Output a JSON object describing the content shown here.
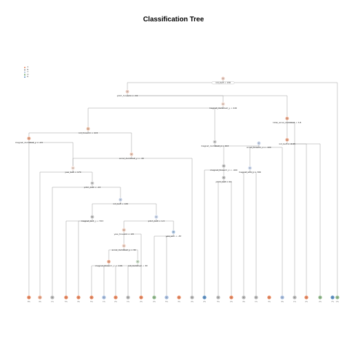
{
  "title": "Classification Tree",
  "legend": [
    {
      "label": "A",
      "color": "#e8845a"
    },
    {
      "label": "B",
      "color": "#b5b5b5"
    },
    {
      "label": "C",
      "color": "#9fb7db"
    },
    {
      "label": "D",
      "color": "#8fb98a"
    },
    {
      "label": "E",
      "color": "#5a8fc4"
    }
  ],
  "nodes": [
    {
      "id": 1,
      "parent": null,
      "color": "#e8c8bc",
      "class": "A",
      "split": "roll_belt < 130",
      "split_style": "box",
      "has_percent": true
    },
    {
      "id": 2,
      "parent": 1,
      "color": "#e8c8bc",
      "class": "A",
      "split": "pitch_forearm < -34"
    },
    {
      "id": 3,
      "parent": 2,
      "color": "#ecd2c6",
      "class": "A",
      "split": "magnet_dumbbell_y < 440"
    },
    {
      "id": 4,
      "parent": 3,
      "color": "#e6b79c",
      "class": "A",
      "split": "roll_forearm < 124"
    },
    {
      "id": 5,
      "parent": 4,
      "color": "#e8a283",
      "class": "A",
      "split": "magnet_dumbbell_y < -24"
    },
    {
      "id": 6,
      "parent": 4,
      "color": "#ebc6b4",
      "class": "A",
      "split": "accel_dumbbell_y < -40"
    },
    {
      "id": 7,
      "parent": 6,
      "color": "#edd6cb",
      "class": "A",
      "split": "yaw_belt < 170"
    },
    {
      "id": 8,
      "parent": 7,
      "color": "#c9c9c9",
      "class": "B",
      "split": "pitch_belt < -43"
    },
    {
      "id": 9,
      "parent": 8,
      "color": "#c3d0e6",
      "class": "C",
      "split": "roll_belt < 126"
    },
    {
      "id": 10,
      "parent": 9,
      "color": "#bdbdbd",
      "class": "B",
      "split": "magnet_belt_y < 553"
    },
    {
      "id": 11,
      "parent": 9,
      "color": "#c3d0e6",
      "class": "C",
      "split": "pitch_belt < 1.3"
    },
    {
      "id": 12,
      "parent": 11,
      "color": "#e6c1b0",
      "class": "A",
      "split": "yaw_forearm < -95"
    },
    {
      "id": 13,
      "parent": 12,
      "color": "#eccbbc",
      "class": "A",
      "split": "accel_dumbbell_y < 30"
    },
    {
      "id": 14,
      "parent": 13,
      "color": "#e8a283",
      "class": "A",
      "split": "magnet_forearm_z < -166"
    },
    {
      "id": 15,
      "parent": 13,
      "color": "#c6dac3",
      "class": "D",
      "split": "roll_dumbbell < 38"
    },
    {
      "id": 16,
      "parent": 11,
      "color": "#a9c4e2",
      "class": "E",
      "split": "yaw_arm < -87"
    },
    {
      "id": 17,
      "parent": 3,
      "color": "#c9c9c9",
      "class": "B",
      "split": "magnet_dumbbell_z < 293"
    },
    {
      "id": 18,
      "parent": 17,
      "color": "#bdbdbd",
      "class": "B",
      "split": "magnet_forearm_z < -490"
    },
    {
      "id": 19,
      "parent": 18,
      "color": "#bdbdbd",
      "class": "B",
      "split": "pitch_belt < 14"
    },
    {
      "id": 20,
      "parent": 17,
      "color": "#c3d0e6",
      "class": "C",
      "split": "accel_forearm_x < -100"
    },
    {
      "id": 21,
      "parent": 20,
      "color": "#c3d0e6",
      "class": "C",
      "split": "magnet_arm_y < 366"
    },
    {
      "id": 22,
      "parent": 2,
      "color": "#e8a283",
      "class": "A",
      "split": "total_accel_dumbbell < 3.8"
    },
    {
      "id": 23,
      "parent": 22,
      "color": "#e8a283",
      "class": "A",
      "split": "roll_belt < -0.05"
    }
  ],
  "leaves": [
    {
      "id": "L01",
      "color": "#e8845a",
      "class": "A",
      "percent": "8%"
    },
    {
      "id": "L02",
      "color": "#e8a283",
      "class": "A",
      "percent": "4%"
    },
    {
      "id": "L03",
      "color": "#b5b5b5",
      "class": "B",
      "percent": "1%"
    },
    {
      "id": "L04",
      "color": "#e8845a",
      "class": "A",
      "percent": "5%"
    },
    {
      "id": "L05",
      "color": "#e8845a",
      "class": "A",
      "percent": "4%"
    },
    {
      "id": "L06",
      "color": "#e8845a",
      "class": "A",
      "percent": "5%"
    },
    {
      "id": "L07",
      "color": "#9fb7db",
      "class": "C",
      "percent": "1%"
    },
    {
      "id": "L08",
      "color": "#e8845a",
      "class": "A",
      "percent": "2%"
    },
    {
      "id": "L09",
      "color": "#b5b5b5",
      "class": "B",
      "percent": "1%"
    },
    {
      "id": "L10",
      "color": "#e8845a",
      "class": "A",
      "percent": "2%"
    },
    {
      "id": "L11",
      "color": "#8fb98a",
      "class": "D",
      "percent": "2%"
    },
    {
      "id": "L12",
      "color": "#9fb7db",
      "class": "C",
      "percent": "5%"
    },
    {
      "id": "L13",
      "color": "#e8845a",
      "class": "A",
      "percent": "3%"
    },
    {
      "id": "L14",
      "color": "#b5b5b5",
      "class": "B",
      "percent": "2%"
    },
    {
      "id": "L15",
      "color": "#5a8fc4",
      "class": "E",
      "percent": "2%"
    },
    {
      "id": "L16",
      "color": "#b5b5b5",
      "class": "B",
      "percent": "5%"
    },
    {
      "id": "L17",
      "color": "#e8845a",
      "class": "A",
      "percent": "2%"
    },
    {
      "id": "L18",
      "color": "#b5b5b5",
      "class": "B",
      "percent": "4%"
    },
    {
      "id": "L19",
      "color": "#b5b5b5",
      "class": "B",
      "percent": "1%"
    },
    {
      "id": "L20",
      "color": "#e8845a",
      "class": "A",
      "percent": "3%"
    },
    {
      "id": "L21",
      "color": "#9fb7db",
      "class": "C",
      "percent": "4%"
    },
    {
      "id": "L22",
      "color": "#b5b5b5",
      "class": "B",
      "percent": "1%"
    },
    {
      "id": "L23",
      "color": "#e8845a",
      "class": "A",
      "percent": "2%"
    },
    {
      "id": "L24",
      "color": "#8fb98a",
      "class": "D",
      "percent": "2%"
    },
    {
      "id": "L25",
      "color": "#5a8fc4",
      "class": "E",
      "percent": "7%"
    },
    {
      "id": "L26",
      "color": "#8fb98a",
      "class": "D",
      "percent": "2%"
    }
  ]
}
